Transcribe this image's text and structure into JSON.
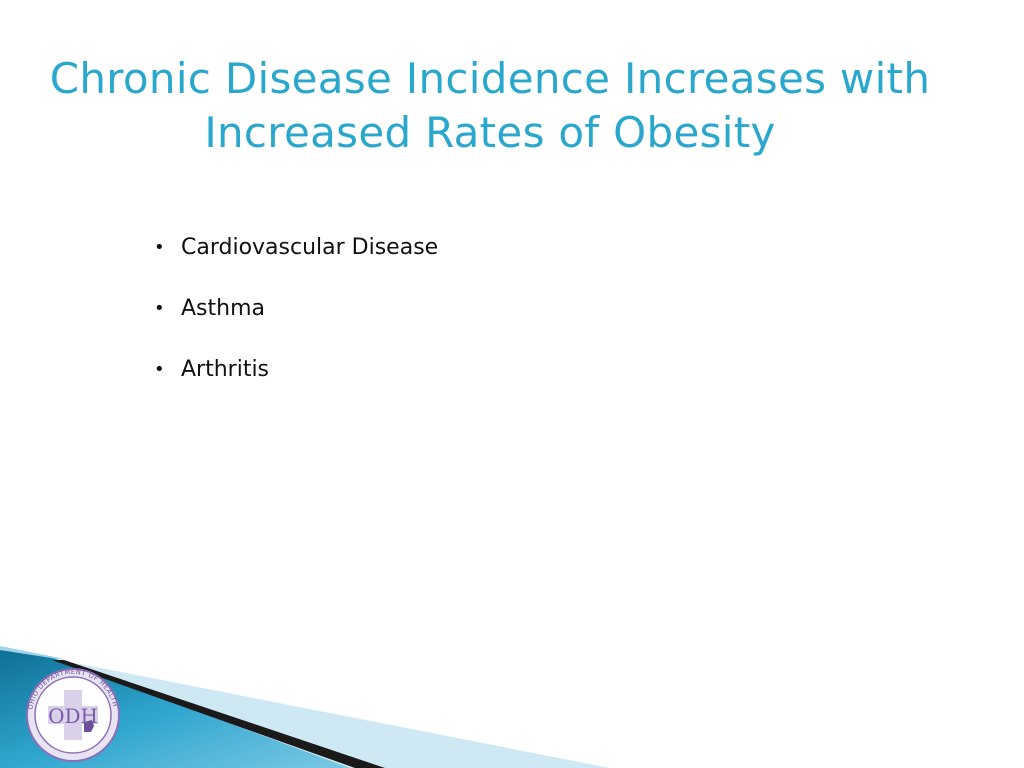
{
  "slide": {
    "title_lines": [
      "Chronic Disease Incidence Increases with",
      "Increased Rates of Obesity"
    ],
    "bullets": [
      "Cardiovascular Disease",
      "Asthma",
      "Arthritis"
    ]
  },
  "logo": {
    "icon": "odh-seal-icon",
    "monogram": "ODH",
    "ring_text": "OHIO DEPARTMENT OF HEALTH"
  },
  "colors": {
    "title": "#2aa7cc",
    "footer_blue": "#1d8fb5",
    "footer_light": "#bfe3f1",
    "seal_purple": "#8c6fb8"
  }
}
